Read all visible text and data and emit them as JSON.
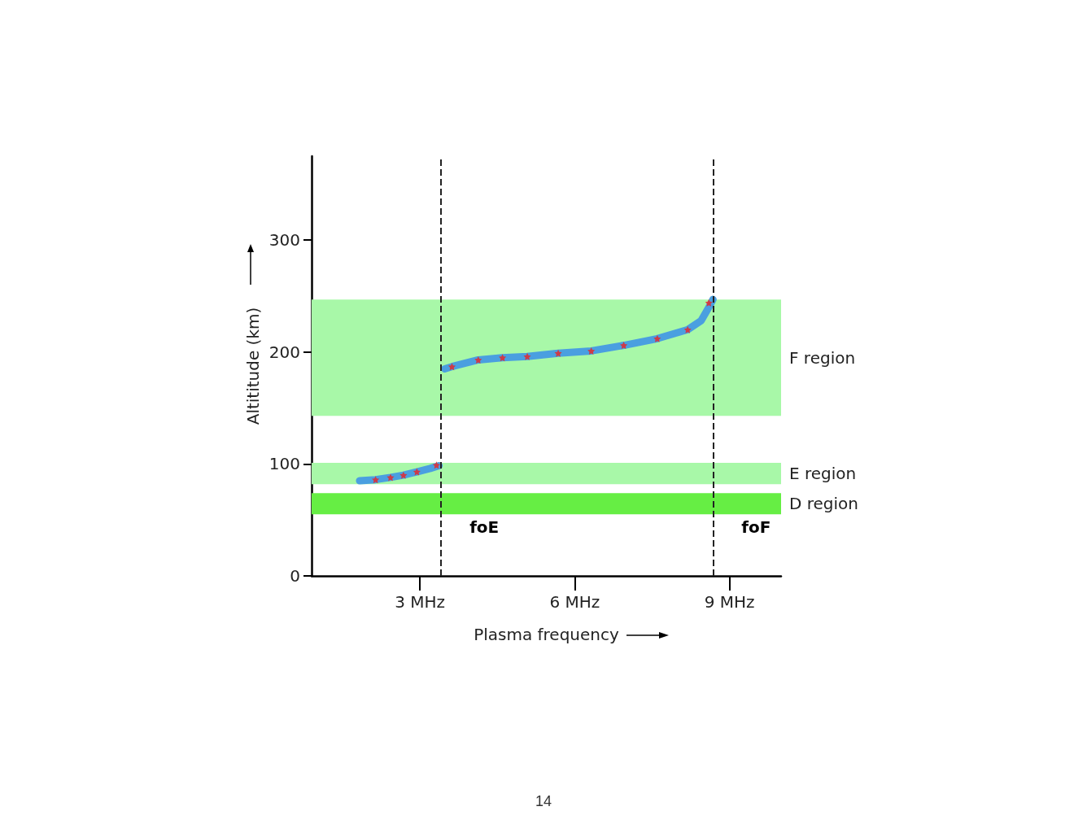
{
  "chart_data": {
    "type": "line",
    "xlabel": "Plasma frequency",
    "ylabel": "Altititude (km)",
    "xlim": [
      0.9,
      10
    ],
    "xticks": [
      {
        "value": 3,
        "label": "3 MHz"
      },
      {
        "value": 6,
        "label": "6 MHz"
      },
      {
        "value": 9,
        "label": "9 MHz"
      }
    ],
    "ylim": [
      0,
      375
    ],
    "yticks": [
      0,
      100,
      200,
      300
    ],
    "series": [
      {
        "color": "#4a9fe0",
        "x": [
          1.83,
          2.14,
          2.43,
          2.68,
          2.94,
          3.2,
          3.37
        ],
        "values": [
          85,
          86,
          88,
          90,
          93,
          96,
          98.5
        ]
      },
      {
        "color": "#4a9fe0",
        "x": [
          3.48,
          3.62,
          4.13,
          4.6,
          5.08,
          5.68,
          6.32,
          6.95,
          7.6,
          8.19,
          8.45,
          8.6,
          8.68
        ],
        "values": [
          185,
          187,
          193,
          195,
          196,
          199,
          201,
          206,
          212,
          220,
          228,
          240,
          247
        ]
      },
      {
        "type": "scatter",
        "color": "#ee2222",
        "marker": "star",
        "x": [
          2.14,
          2.43,
          2.68,
          2.94,
          3.32,
          3.62,
          4.13,
          4.6,
          5.08,
          5.68,
          6.32,
          6.95,
          7.6,
          8.19,
          8.6
        ],
        "values": [
          86,
          88,
          90,
          93,
          99,
          187,
          193,
          195,
          196,
          199,
          201,
          206,
          212,
          220,
          244
        ]
      }
    ],
    "bands": [
      {
        "axis": "y",
        "from": 143,
        "to": 247,
        "label": "F region",
        "color": "#a8f8a8"
      },
      {
        "axis": "y",
        "from": 82,
        "to": 101,
        "label": "E region",
        "color": "#a8f8a8"
      },
      {
        "axis": "y",
        "from": 55,
        "to": 74,
        "label": "D region",
        "color": "#66ee44"
      }
    ],
    "ref_lines": [
      {
        "axis": "x",
        "value": 3.41,
        "label": "foE",
        "line_style": "dashed",
        "color": "#222222"
      },
      {
        "axis": "x",
        "value": 8.68,
        "label": "foF",
        "line_style": "dashed",
        "color": "#222222"
      }
    ],
    "grid": false,
    "annotations": [
      "14"
    ]
  }
}
